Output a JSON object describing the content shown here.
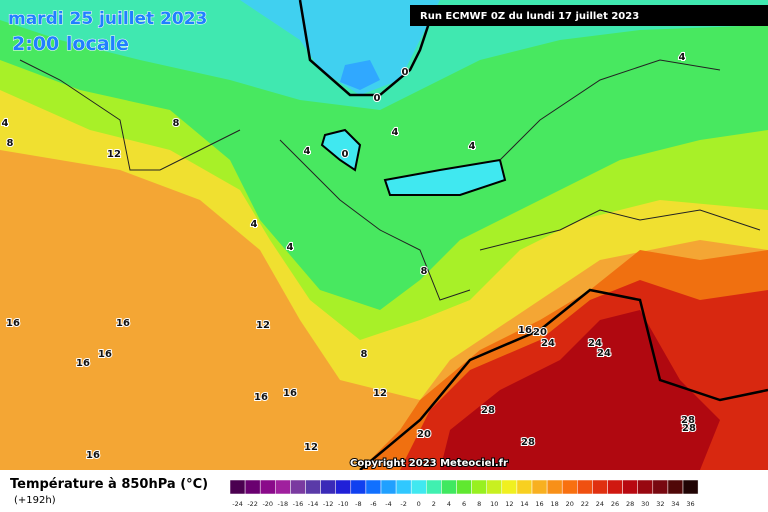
{
  "header": {
    "date": "mardi 25 juillet 2023",
    "time": "2:00 locale",
    "run": "Run ECMWF 0Z du lundi 17 juillet 2023"
  },
  "copyright": "Copyright 2023 Meteociel.fr",
  "footer": {
    "title": "Température à 850hPa (°C)",
    "lead": "(+192h)"
  },
  "legend": {
    "ticks": [
      -24,
      -22,
      -20,
      -18,
      -16,
      -14,
      -12,
      -10,
      -8,
      -6,
      -4,
      -2,
      0,
      2,
      4,
      6,
      8,
      10,
      12,
      14,
      16,
      18,
      20,
      22,
      24,
      26,
      28,
      30,
      32,
      34,
      36
    ],
    "colors": [
      "#4b0050",
      "#6a0070",
      "#8a0a8a",
      "#a0209e",
      "#7a3aa0",
      "#5a3aa8",
      "#3a2ab8",
      "#2020d8",
      "#1040f0",
      "#1070ff",
      "#20a0ff",
      "#30c8ff",
      "#40e8f0",
      "#40f0b0",
      "#40e860",
      "#60e830",
      "#98f020",
      "#c8f020",
      "#f0f020",
      "#f8d020",
      "#f8b020",
      "#f89018",
      "#f87010",
      "#f05010",
      "#e03010",
      "#d01810",
      "#b80810",
      "#980810",
      "#780810",
      "#500808",
      "#200404"
    ]
  },
  "map": {
    "labels": [
      "4",
      "8",
      "8",
      "12",
      "4",
      "4",
      "4",
      "4",
      "4",
      "0",
      "0",
      "0",
      "4",
      "8",
      "12",
      "16",
      "16",
      "16",
      "16",
      "16",
      "16",
      "12",
      "8",
      "16",
      "20",
      "24",
      "24",
      "24",
      "28",
      "28",
      "28",
      "20",
      "28",
      "12",
      "16"
    ]
  }
}
